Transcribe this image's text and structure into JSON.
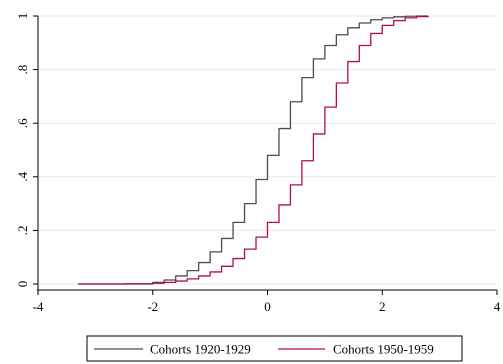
{
  "chart_data": {
    "type": "line",
    "title": "",
    "xlabel": "",
    "ylabel": "",
    "xlim": [
      -4,
      4
    ],
    "ylim": [
      0,
      1
    ],
    "grid": true,
    "legend_position": "bottom",
    "x_ticks": [
      -4,
      -2,
      0,
      2,
      4
    ],
    "x_tick_labels": [
      "-4",
      "-2",
      "0",
      "2",
      "4"
    ],
    "y_ticks": [
      0,
      0.2,
      0.4,
      0.6,
      0.8,
      1
    ],
    "y_tick_labels": [
      "0",
      ".2",
      ".4",
      ".6",
      ".8",
      "1"
    ],
    "series": [
      {
        "name": "Cohorts 1920-1929",
        "color": "#4d4d4d",
        "x": [
          -3.3,
          -2.5,
          -2.0,
          -1.8,
          -1.6,
          -1.4,
          -1.2,
          -1.0,
          -0.8,
          -0.6,
          -0.4,
          -0.2,
          0.0,
          0.2,
          0.4,
          0.6,
          0.8,
          1.0,
          1.2,
          1.4,
          1.6,
          1.8,
          2.0,
          2.2,
          2.4,
          2.6,
          2.8
        ],
        "y": [
          0.0,
          0.001,
          0.006,
          0.015,
          0.03,
          0.05,
          0.08,
          0.12,
          0.17,
          0.23,
          0.3,
          0.39,
          0.48,
          0.58,
          0.68,
          0.77,
          0.84,
          0.89,
          0.93,
          0.956,
          0.974,
          0.986,
          0.993,
          0.997,
          0.999,
          1.0,
          1.0
        ]
      },
      {
        "name": "Cohorts 1950-1959",
        "color": "#b0103a",
        "x": [
          -3.3,
          -2.5,
          -2.0,
          -1.8,
          -1.6,
          -1.4,
          -1.2,
          -1.0,
          -0.8,
          -0.6,
          -0.4,
          -0.2,
          0.0,
          0.2,
          0.4,
          0.6,
          0.8,
          1.0,
          1.2,
          1.4,
          1.6,
          1.8,
          2.0,
          2.2,
          2.4,
          2.6,
          2.8
        ],
        "y": [
          0.0,
          0.0,
          0.003,
          0.006,
          0.011,
          0.019,
          0.03,
          0.045,
          0.066,
          0.095,
          0.13,
          0.175,
          0.23,
          0.295,
          0.37,
          0.46,
          0.56,
          0.66,
          0.75,
          0.83,
          0.89,
          0.935,
          0.965,
          0.983,
          0.993,
          0.998,
          1.0
        ]
      }
    ]
  }
}
